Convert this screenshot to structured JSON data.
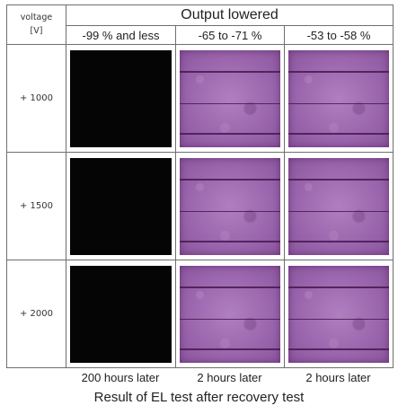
{
  "table": {
    "voltage_header_line1": "voltage",
    "voltage_header_line2": "[V]",
    "group_title": "Output lowered",
    "columns": [
      "-99 % and less",
      "-65 to -71 %",
      "-53 to -58 %"
    ],
    "rows": [
      {
        "voltage": "+ 1000"
      },
      {
        "voltage": "+ 1500"
      },
      {
        "voltage": "+ 2000"
      }
    ],
    "cell_appearance": [
      "black",
      "purple",
      "purple"
    ]
  },
  "footer": {
    "times": [
      "200 hours later",
      "2 hours later",
      "2 hours later"
    ]
  },
  "caption": "Result of EL test after recovery test",
  "colors": {
    "dark_cell": "#050505",
    "el_purple": "#a070b4",
    "border": "#6f6f6f"
  }
}
